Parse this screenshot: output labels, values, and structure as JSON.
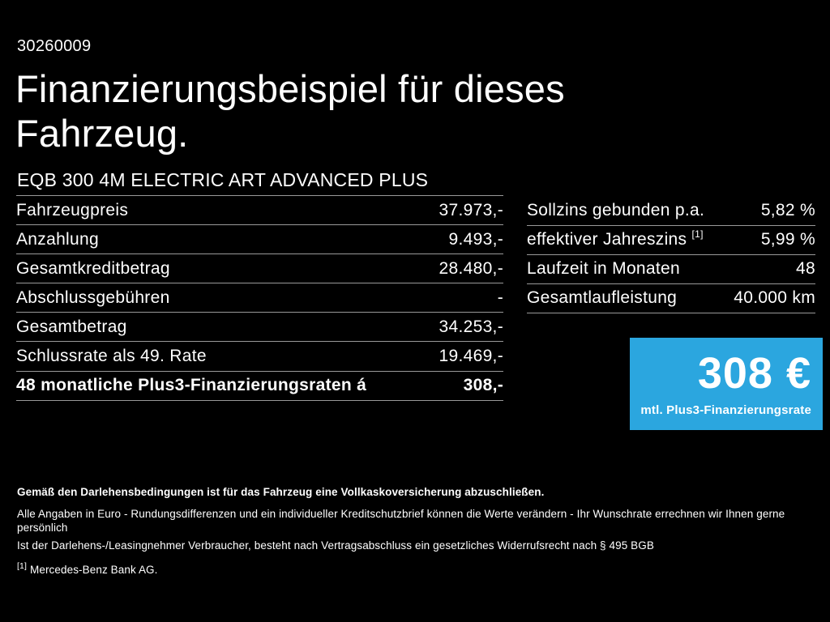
{
  "page": {
    "background": "#000000",
    "line_color": "#999999",
    "doc_number": "30260009",
    "title_line1": "Finanzierungsbeispiel für dieses",
    "title_line2": "Fahrzeug.",
    "vehicle_name": "EQB 300 4M ELECTRIC ART ADVANCED PLUS"
  },
  "finance_table": {
    "rows": [
      {
        "label": "Fahrzeugpreis",
        "value": "37.973,-"
      },
      {
        "label": "Anzahlung",
        "value": "9.493,-"
      },
      {
        "label": "Gesamtkreditbetrag",
        "value": "28.480,-"
      },
      {
        "label": "Abschlussgebühren",
        "value": "-"
      },
      {
        "label": "Gesamtbetrag",
        "value": "34.253,-"
      },
      {
        "label": "Schlussrate als 49. Rate",
        "value": "19.469,-"
      },
      {
        "label": "48 monatliche Plus3-Finanzierungsraten á",
        "value": "308,-"
      }
    ]
  },
  "conditions_table": {
    "rows": [
      {
        "label": "Sollzins gebunden p.a.",
        "value": "5,82 %"
      },
      {
        "label": "effektiver Jahreszins",
        "footnote_mark": "[1]",
        "value": "5,99 %"
      },
      {
        "label": "Laufzeit in Monaten",
        "value": "48"
      },
      {
        "label": "Gesamtlaufleistung",
        "value": "40.000 km"
      }
    ]
  },
  "rate_box": {
    "amount": "308 €",
    "caption": "mtl. Plus3-Finanzierungsrate",
    "background_color": "#2ba6df"
  },
  "footer": {
    "insurance_note": "Gemäß den Darlehensbedingungen ist für das Fahrzeug eine Vollkaskoversicherung abzuschließen.",
    "disclaimer_line1": "Alle Angaben in Euro - Rundungsdifferenzen und ein individueller Kreditschutzbrief können die Werte verändern - Ihr Wunschrate errechnen wir Ihnen gerne persönlich",
    "disclaimer_line2": "Ist der Darlehens-/Leasingnehmer Verbraucher, besteht nach Vertragsabschluss ein gesetzliches Widerrufsrecht nach § 495 BGB",
    "footnote_mark": "[1]",
    "footnote_text": "Mercedes-Benz Bank AG."
  }
}
